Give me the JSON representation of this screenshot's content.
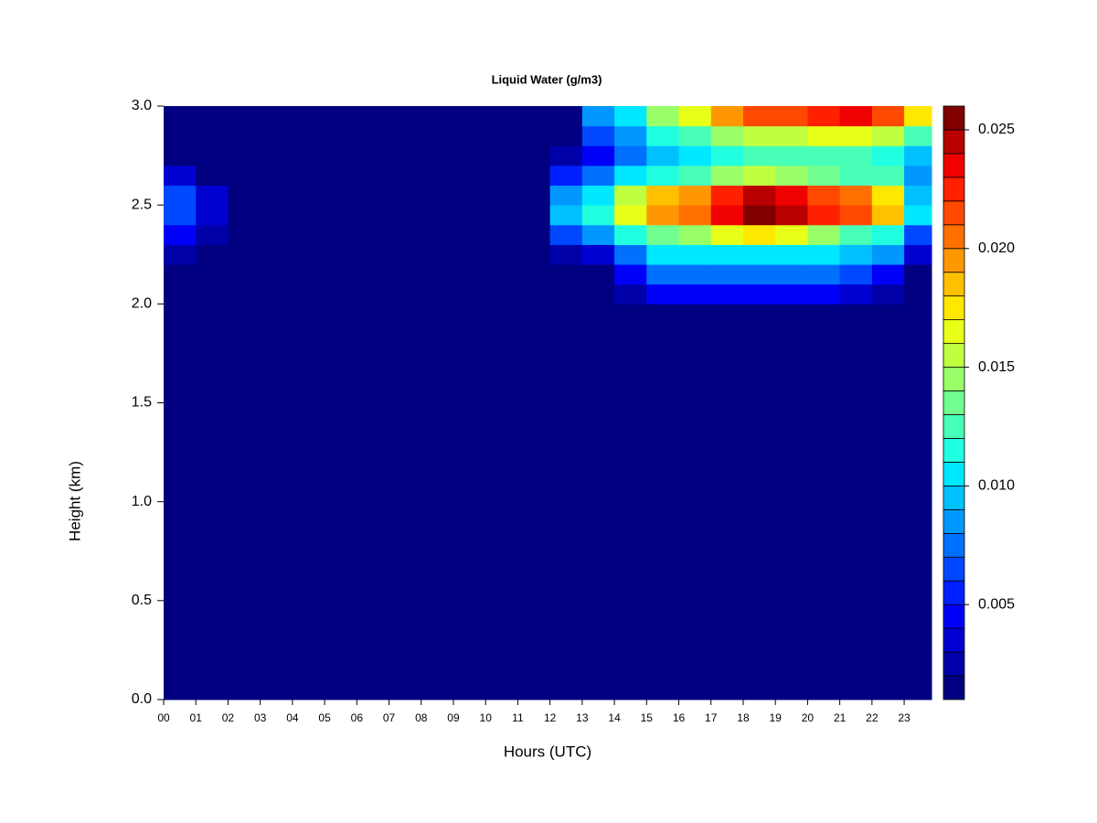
{
  "chart_data": {
    "type": "heatmap",
    "title": "Liquid Water (g/m3)",
    "xlabel": "Hours (UTC)",
    "ylabel": "Height (km)",
    "xlim": [
      0,
      23.85
    ],
    "ylim": [
      0,
      3
    ],
    "xbins": [
      0,
      1,
      2,
      3,
      4,
      5,
      6,
      7,
      8,
      9,
      10,
      11,
      12,
      13,
      14,
      15,
      16,
      17,
      18,
      19,
      20,
      21,
      22,
      23,
      23.85
    ],
    "ybins": [
      0,
      2.0,
      2.1,
      2.2,
      2.3,
      2.4,
      2.5,
      2.6,
      2.7,
      2.8,
      2.9,
      3.0
    ],
    "z": [
      [
        0.001,
        0.001,
        0.001,
        0.001,
        0.001,
        0.001,
        0.001,
        0.001,
        0.001,
        0.001,
        0.001,
        0.001,
        0.001,
        0.001,
        0.001,
        0.001,
        0.001,
        0.001,
        0.001,
        0.001,
        0.001,
        0.001,
        0.001,
        0.001
      ],
      [
        0.001,
        0.001,
        0.001,
        0.001,
        0.001,
        0.001,
        0.001,
        0.001,
        0.001,
        0.001,
        0.001,
        0.001,
        0.001,
        0.001,
        0.002,
        0.004,
        0.004,
        0.004,
        0.004,
        0.004,
        0.004,
        0.003,
        0.002,
        0.001
      ],
      [
        0.001,
        0.001,
        0.001,
        0.001,
        0.001,
        0.001,
        0.001,
        0.001,
        0.001,
        0.001,
        0.001,
        0.001,
        0.001,
        0.001,
        0.004,
        0.007,
        0.007,
        0.007,
        0.007,
        0.007,
        0.007,
        0.006,
        0.004,
        0.001
      ],
      [
        0.002,
        0.001,
        0.001,
        0.001,
        0.001,
        0.001,
        0.001,
        0.001,
        0.001,
        0.001,
        0.001,
        0.001,
        0.002,
        0.003,
        0.007,
        0.01,
        0.01,
        0.01,
        0.01,
        0.01,
        0.01,
        0.009,
        0.008,
        0.003
      ],
      [
        0.004,
        0.002,
        0.001,
        0.001,
        0.001,
        0.001,
        0.001,
        0.001,
        0.001,
        0.001,
        0.001,
        0.001,
        0.006,
        0.008,
        0.011,
        0.013,
        0.014,
        0.016,
        0.017,
        0.016,
        0.014,
        0.012,
        0.011,
        0.006
      ],
      [
        0.006,
        0.003,
        0.001,
        0.001,
        0.001,
        0.001,
        0.001,
        0.001,
        0.001,
        0.001,
        0.001,
        0.001,
        0.009,
        0.011,
        0.016,
        0.019,
        0.02,
        0.023,
        0.025,
        0.024,
        0.022,
        0.021,
        0.018,
        0.01
      ],
      [
        0.006,
        0.003,
        0.001,
        0.001,
        0.001,
        0.001,
        0.001,
        0.001,
        0.001,
        0.001,
        0.001,
        0.001,
        0.008,
        0.01,
        0.015,
        0.018,
        0.019,
        0.022,
        0.024,
        0.023,
        0.021,
        0.02,
        0.017,
        0.009
      ],
      [
        0.003,
        0.001,
        0.001,
        0.001,
        0.001,
        0.001,
        0.001,
        0.001,
        0.001,
        0.001,
        0.001,
        0.001,
        0.005,
        0.007,
        0.01,
        0.011,
        0.012,
        0.014,
        0.015,
        0.014,
        0.013,
        0.012,
        0.012,
        0.008
      ],
      [
        0.001,
        0.001,
        0.001,
        0.001,
        0.001,
        0.001,
        0.001,
        0.001,
        0.001,
        0.001,
        0.001,
        0.001,
        0.002,
        0.004,
        0.007,
        0.009,
        0.01,
        0.011,
        0.012,
        0.012,
        0.012,
        0.012,
        0.011,
        0.009
      ],
      [
        0.001,
        0.001,
        0.001,
        0.001,
        0.001,
        0.001,
        0.001,
        0.001,
        0.001,
        0.001,
        0.001,
        0.001,
        0.001,
        0.006,
        0.008,
        0.011,
        0.012,
        0.014,
        0.015,
        0.015,
        0.016,
        0.016,
        0.015,
        0.012
      ],
      [
        0.001,
        0.001,
        0.001,
        0.001,
        0.001,
        0.001,
        0.001,
        0.001,
        0.001,
        0.001,
        0.001,
        0.001,
        0.001,
        0.008,
        0.01,
        0.014,
        0.016,
        0.019,
        0.021,
        0.021,
        0.022,
        0.023,
        0.021,
        0.017
      ]
    ],
    "levels": [
      0.001,
      0.002,
      0.003,
      0.004,
      0.005,
      0.006,
      0.007,
      0.008,
      0.009,
      0.01,
      0.011,
      0.012,
      0.013,
      0.014,
      0.015,
      0.016,
      0.017,
      0.018,
      0.019,
      0.02,
      0.021,
      0.022,
      0.023,
      0.024,
      0.025,
      0.026
    ],
    "colors": [
      "#000080",
      "#0000a8",
      "#0000d0",
      "#0000f8",
      "#0020ff",
      "#0048ff",
      "#0070ff",
      "#0098ff",
      "#00c0ff",
      "#00e8ff",
      "#20ffe0",
      "#48ffb8",
      "#70ff90",
      "#98ff68",
      "#c0ff40",
      "#e8ff18",
      "#ffe800",
      "#ffc000",
      "#ff9800",
      "#ff7000",
      "#ff4800",
      "#ff2000",
      "#f00000",
      "#b80000",
      "#800000"
    ],
    "colorbar_ticks": [
      0.005,
      {
        "value": 0.01,
        "label": "0.010"
      },
      0.015,
      {
        "value": 0.02,
        "label": "0.020"
      },
      0.025
    ],
    "xticks": [
      {
        "value": 0,
        "label": "00"
      },
      {
        "value": 1,
        "label": "01"
      },
      {
        "value": 2,
        "label": "02"
      },
      {
        "value": 3,
        "label": "03"
      },
      {
        "value": 4,
        "label": "04"
      },
      {
        "value": 5,
        "label": "05"
      },
      {
        "value": 6,
        "label": "06"
      },
      {
        "value": 7,
        "label": "07"
      },
      {
        "value": 8,
        "label": "08"
      },
      {
        "value": 9,
        "label": "09"
      },
      {
        "value": 10,
        "label": "10"
      },
      {
        "value": 11,
        "label": "11"
      },
      {
        "value": 12,
        "label": "12"
      },
      {
        "value": 13,
        "label": "13"
      },
      {
        "value": 14,
        "label": "14"
      },
      {
        "value": 15,
        "label": "15"
      },
      {
        "value": 16,
        "label": "16"
      },
      {
        "value": 17,
        "label": "17"
      },
      {
        "value": 18,
        "label": "18"
      },
      {
        "value": 19,
        "label": "19"
      },
      {
        "value": 20,
        "label": "20"
      },
      {
        "value": 21,
        "label": "21"
      },
      {
        "value": 22,
        "label": "22"
      },
      {
        "value": 23,
        "label": "23"
      }
    ],
    "yticks": [
      {
        "value": 0,
        "label": "0.0"
      },
      {
        "value": 0.5,
        "label": "0.5"
      },
      {
        "value": 1,
        "label": "1.0"
      },
      {
        "value": 1.5,
        "label": "1.5"
      },
      {
        "value": 2,
        "label": "2.0"
      },
      {
        "value": 2.5,
        "label": "2.5"
      },
      {
        "value": 3,
        "label": "3.0"
      }
    ]
  }
}
